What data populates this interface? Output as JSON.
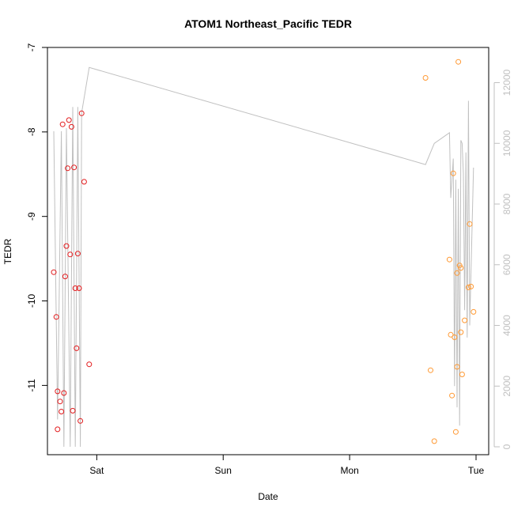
{
  "chart_data": {
    "type": "scatter",
    "title": "ATOM1 Northeast_Pacific TEDR",
    "xlabel": "Date",
    "ylabel": "TEDR",
    "x_unit": "days",
    "x_ticks": [
      {
        "label": "Sat",
        "value": 1.0
      },
      {
        "label": "Sun",
        "value": 2.0
      },
      {
        "label": "Mon",
        "value": 3.0
      },
      {
        "label": "Tue",
        "value": 4.0
      }
    ],
    "xlim": [
      0.61,
      4.1
    ],
    "y_ticks": [
      -7,
      -8,
      -9,
      -10,
      -11
    ],
    "ylim": [
      -11.82,
      -7.0
    ],
    "y2_ticks": [
      0,
      2000,
      4000,
      6000,
      8000,
      10000,
      12000
    ],
    "y2lim": [
      -260,
      13160
    ],
    "colors": {
      "series1": "#e31a1c",
      "series2": "#ff9933",
      "line": "#c0c0c0",
      "right_axis": "#c0c0c0",
      "axis": "#000000"
    },
    "series": [
      {
        "color": "#e31a1c",
        "points": [
          {
            "x": 0.66,
            "y": -9.66
          },
          {
            "x": 0.68,
            "y": -10.19
          },
          {
            "x": 0.69,
            "y": -11.52
          },
          {
            "x": 0.69,
            "y": -11.07
          },
          {
            "x": 0.71,
            "y": -11.19
          },
          {
            "x": 0.72,
            "y": -11.31
          },
          {
            "x": 0.73,
            "y": -7.91
          },
          {
            "x": 0.74,
            "y": -11.09
          },
          {
            "x": 0.75,
            "y": -9.71
          },
          {
            "x": 0.76,
            "y": -9.35
          },
          {
            "x": 0.77,
            "y": -8.43
          },
          {
            "x": 0.78,
            "y": -7.86
          },
          {
            "x": 0.79,
            "y": -9.45
          },
          {
            "x": 0.8,
            "y": -7.94
          },
          {
            "x": 0.81,
            "y": -11.3
          },
          {
            "x": 0.82,
            "y": -8.42
          },
          {
            "x": 0.83,
            "y": -9.85
          },
          {
            "x": 0.84,
            "y": -10.56
          },
          {
            "x": 0.85,
            "y": -9.44
          },
          {
            "x": 0.86,
            "y": -9.85
          },
          {
            "x": 0.87,
            "y": -11.42
          },
          {
            "x": 0.88,
            "y": -7.78
          },
          {
            "x": 0.9,
            "y": -8.59
          },
          {
            "x": 0.94,
            "y": -10.75
          }
        ]
      },
      {
        "color": "#ff9933",
        "points": [
          {
            "x": 3.6,
            "y": -7.36
          },
          {
            "x": 3.64,
            "y": -10.82
          },
          {
            "x": 3.67,
            "y": -11.66
          },
          {
            "x": 3.79,
            "y": -9.51
          },
          {
            "x": 3.8,
            "y": -10.4
          },
          {
            "x": 3.81,
            "y": -11.12
          },
          {
            "x": 3.82,
            "y": -8.49
          },
          {
            "x": 3.83,
            "y": -10.43
          },
          {
            "x": 3.84,
            "y": -11.55
          },
          {
            "x": 3.85,
            "y": -10.78
          },
          {
            "x": 3.85,
            "y": -9.67
          },
          {
            "x": 3.86,
            "y": -7.17
          },
          {
            "x": 3.87,
            "y": -9.58
          },
          {
            "x": 3.88,
            "y": -9.61
          },
          {
            "x": 3.88,
            "y": -10.37
          },
          {
            "x": 3.89,
            "y": -10.87
          },
          {
            "x": 3.91,
            "y": -10.23
          },
          {
            "x": 3.94,
            "y": -9.84
          },
          {
            "x": 3.95,
            "y": -9.09
          },
          {
            "x": 3.96,
            "y": -9.83
          },
          {
            "x": 3.98,
            "y": -10.13
          }
        ]
      }
    ],
    "line_series": {
      "color": "#c0c0c0",
      "points": [
        {
          "x": 0.66,
          "y2": 10400
        },
        {
          "x": 0.69,
          "y2": 900
        },
        {
          "x": 0.72,
          "y2": 10400
        },
        {
          "x": 0.74,
          "y2": 0
        },
        {
          "x": 0.76,
          "y2": 10500
        },
        {
          "x": 0.79,
          "y2": 0
        },
        {
          "x": 0.81,
          "y2": 11200
        },
        {
          "x": 0.83,
          "y2": 0
        },
        {
          "x": 0.85,
          "y2": 11200
        },
        {
          "x": 0.87,
          "y2": 0
        },
        {
          "x": 0.88,
          "y2": 11000
        },
        {
          "x": 0.94,
          "y2": 12500
        },
        {
          "x": 3.6,
          "y2": 9300
        },
        {
          "x": 3.67,
          "y2": 10000
        },
        {
          "x": 3.79,
          "y2": 10350
        },
        {
          "x": 3.8,
          "y2": 8200
        },
        {
          "x": 3.82,
          "y2": 9500
        },
        {
          "x": 3.83,
          "y2": 2000
        },
        {
          "x": 3.84,
          "y2": 8800
        },
        {
          "x": 3.85,
          "y2": 1300
        },
        {
          "x": 3.86,
          "y2": 8500
        },
        {
          "x": 3.87,
          "y2": 700
        },
        {
          "x": 3.88,
          "y2": 10100
        },
        {
          "x": 3.89,
          "y2": 10000
        },
        {
          "x": 3.9,
          "y2": 9000
        },
        {
          "x": 3.91,
          "y2": 4500
        },
        {
          "x": 3.92,
          "y2": 9700
        },
        {
          "x": 3.93,
          "y2": 3600
        },
        {
          "x": 3.94,
          "y2": 11400
        },
        {
          "x": 3.95,
          "y2": 4000
        },
        {
          "x": 3.98,
          "y2": 9200
        }
      ]
    },
    "grid": false,
    "legend": "none"
  }
}
